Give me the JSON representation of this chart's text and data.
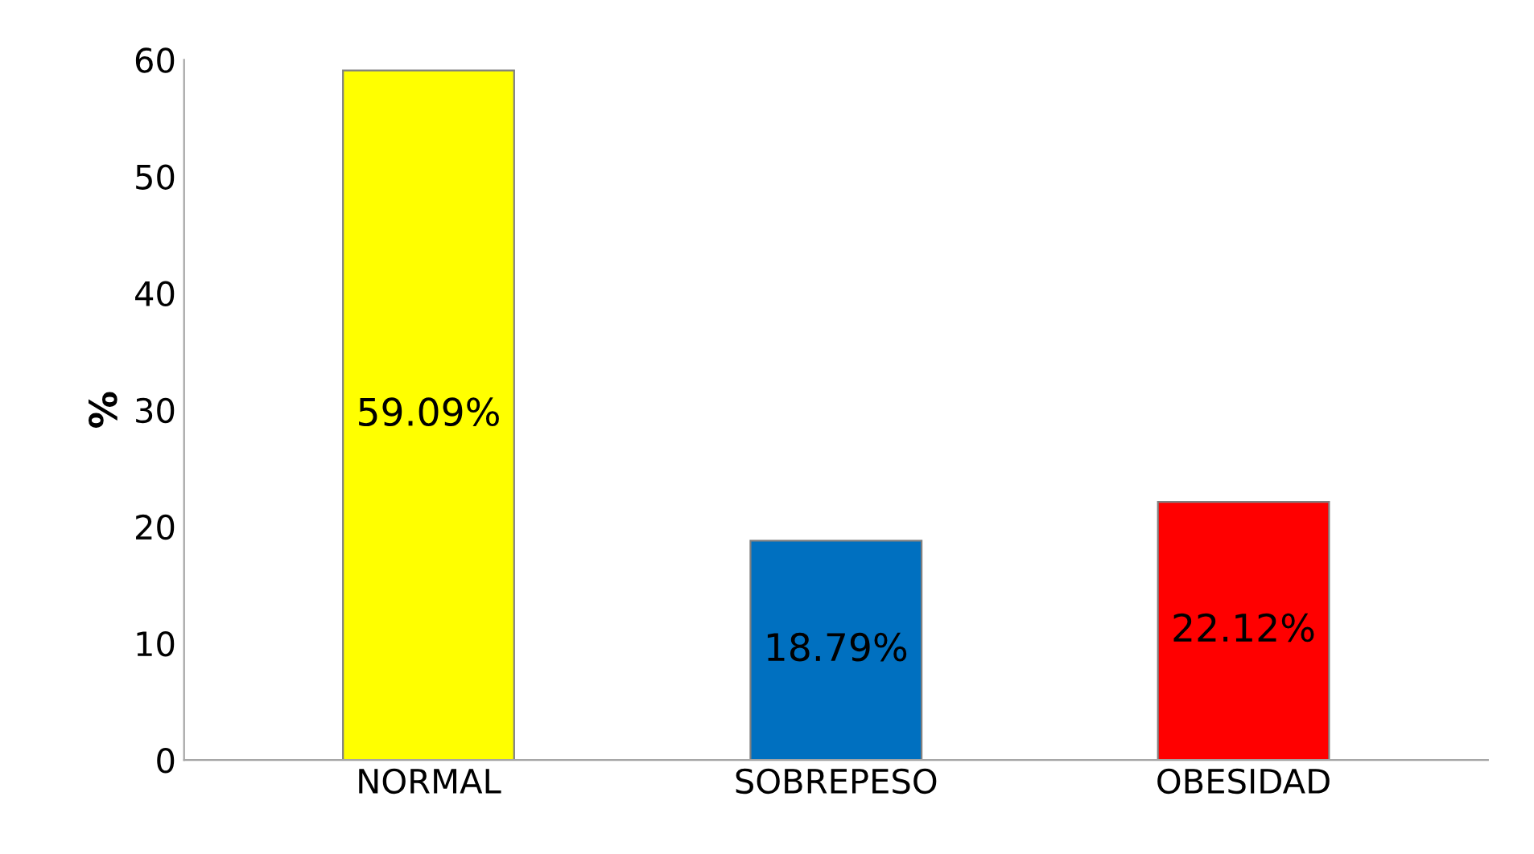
{
  "chart_data": {
    "type": "bar",
    "ylabel": "%",
    "categories": [
      "NORMAL",
      "SOBREPESO",
      "OBESIDAD"
    ],
    "values": [
      59.09,
      18.79,
      22.12
    ],
    "colors": [
      "#ffff00",
      "#0070c0",
      "#ff0000"
    ],
    "value_labels": [
      "59.09%",
      "18.79%",
      "22.12%"
    ],
    "ylim": [
      0,
      60
    ],
    "yticks": [
      0,
      10,
      20,
      30,
      40,
      50,
      60
    ],
    "grid": false
  }
}
